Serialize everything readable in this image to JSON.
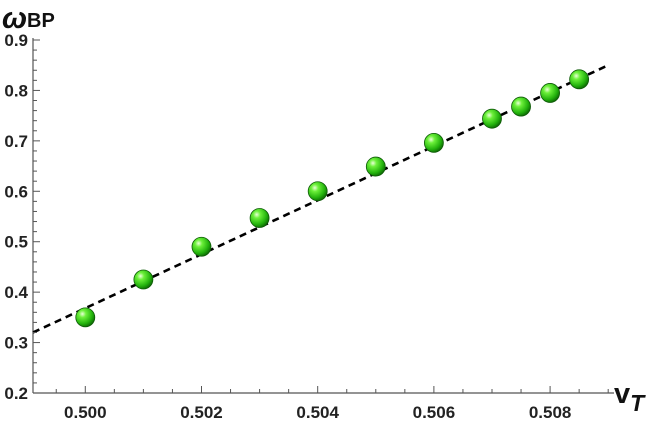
{
  "chart_data": {
    "type": "scatter",
    "title": "",
    "xlabel": "v",
    "xlabel_sub": "T",
    "ylabel": "ω",
    "ylabel_sub": "BP",
    "xlim": [
      0.4991,
      0.5091
    ],
    "ylim": [
      0.2,
      0.9
    ],
    "x_ticks": [
      0.5,
      0.502,
      0.504,
      0.506,
      0.508
    ],
    "x_tick_labels": [
      "0.500",
      "0.502",
      "0.504",
      "0.506",
      "0.508"
    ],
    "y_ticks": [
      0.2,
      0.3,
      0.4,
      0.5,
      0.6,
      0.7,
      0.8,
      0.9
    ],
    "y_tick_labels": [
      "0.2",
      "0.3",
      "0.4",
      "0.5",
      "0.6",
      "0.7",
      "0.8",
      "0.9"
    ],
    "grid": false,
    "series": [
      {
        "x": [
          0.5,
          0.501,
          0.502,
          0.503,
          0.504,
          0.505,
          0.506,
          0.507,
          0.5075,
          0.508,
          0.5085
        ],
        "y": [
          0.35,
          0.425,
          0.49,
          0.547,
          0.6,
          0.649,
          0.696,
          0.744,
          0.768,
          0.795,
          0.822
        ],
        "marker": "sphere",
        "color": "#33cc11"
      }
    ],
    "fit_line": {
      "style": "dashed",
      "color": "#000000",
      "x": [
        0.4991,
        0.509
      ],
      "y": [
        0.32,
        0.85
      ]
    }
  }
}
